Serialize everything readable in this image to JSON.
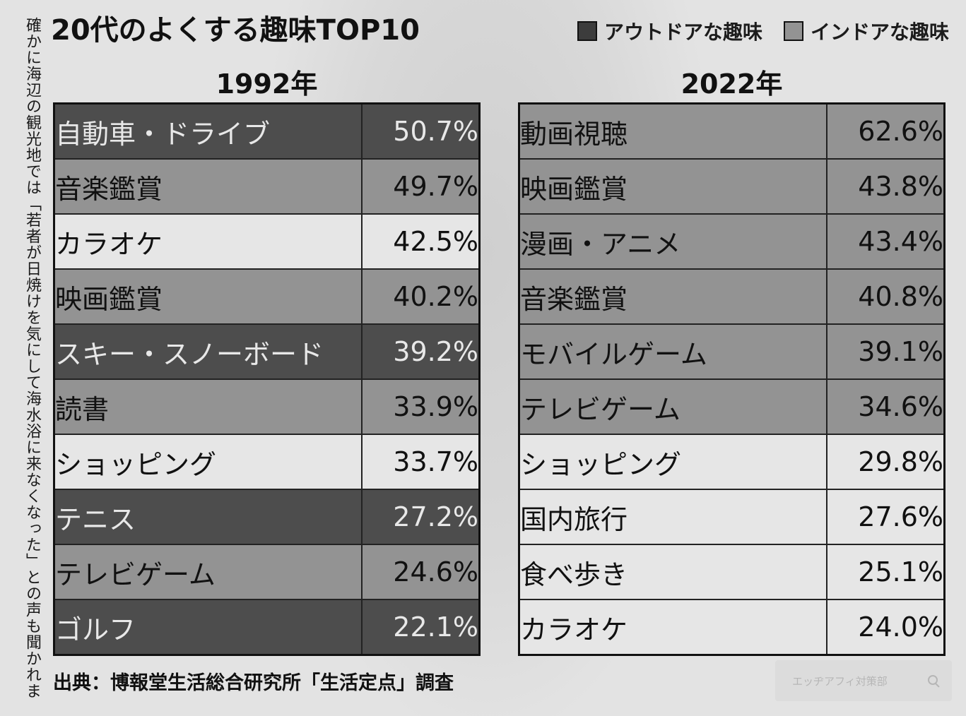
{
  "side_text": "確かに海辺の観光地では「若者が日焼けを気にして海水浴に来なくなった」との声も聞かれま",
  "title": "20代のよくする趣味TOP10",
  "legend": {
    "outdoor": "アウトドアな趣味",
    "indoor": "インドアな趣味"
  },
  "colors": {
    "outdoor": "#4d4d4d",
    "indoor": "#939393",
    "neutral": "#e6e6e6"
  },
  "year_1992": {
    "label": "1992年",
    "rows": [
      {
        "name": "自動車・ドライブ",
        "pct": "50.7%"
      },
      {
        "name": "音楽鑑賞",
        "pct": "49.7%"
      },
      {
        "name": "カラオケ",
        "pct": "42.5%"
      },
      {
        "name": "映画鑑賞",
        "pct": "40.2%"
      },
      {
        "name": "スキー・スノーボード",
        "pct": "39.2%"
      },
      {
        "name": "読書",
        "pct": "33.9%"
      },
      {
        "name": "ショッピング",
        "pct": "33.7%"
      },
      {
        "name": "テニス",
        "pct": "27.2%"
      },
      {
        "name": "テレビゲーム",
        "pct": "24.6%"
      },
      {
        "name": "ゴルフ",
        "pct": "22.1%"
      }
    ]
  },
  "year_2022": {
    "label": "2022年",
    "rows": [
      {
        "name": "動画視聴",
        "pct": "62.6%"
      },
      {
        "name": "映画鑑賞",
        "pct": "43.8%"
      },
      {
        "name": "漫画・アニメ",
        "pct": "43.4%"
      },
      {
        "name": "音楽鑑賞",
        "pct": "40.8%"
      },
      {
        "name": "モバイルゲーム",
        "pct": "39.1%"
      },
      {
        "name": "テレビゲーム",
        "pct": "34.6%"
      },
      {
        "name": "ショッピング",
        "pct": "29.8%"
      },
      {
        "name": "国内旅行",
        "pct": "27.6%"
      },
      {
        "name": "食べ歩き",
        "pct": "25.1%"
      },
      {
        "name": "カラオケ",
        "pct": "24.0%"
      }
    ]
  },
  "source": "出典：博報堂生活総合研究所「生活定点」調査",
  "watermark_search": "エッヂアフィ対策部"
}
